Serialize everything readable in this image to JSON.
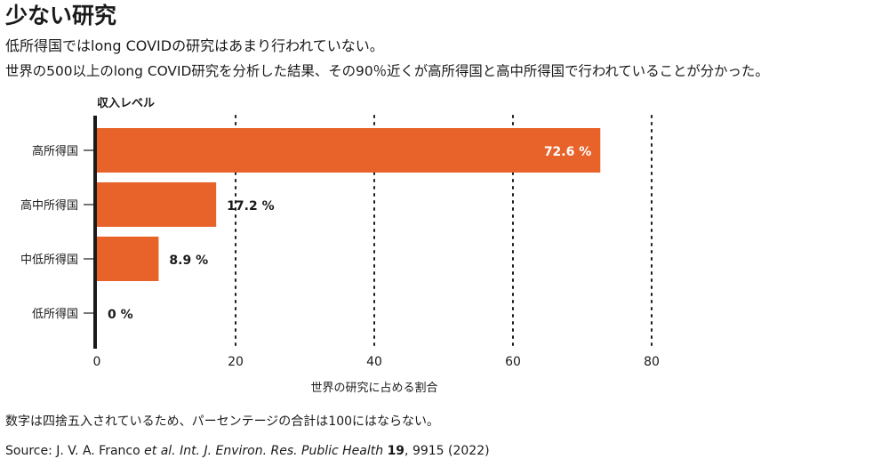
{
  "header": {
    "title": "少ない研究",
    "subtitle1": "低所得国ではlong COVIDの研究はあまり行われていない。",
    "subtitle2": "世界の500以上のlong COVID研究を分析した結果、その90％近くが高所得国と高中所得国で行われていることが分かった。"
  },
  "footer": {
    "note": "数字は四捨五入されているため、パーセンテージの合計は100にはならない。",
    "source_prefix": "Source: J. V. A. Franco ",
    "source_italic": "et al. Int. J. Environ. Res. Public Health",
    "source_bold": "19",
    "source_suffix": ", 9915 (2022)"
  },
  "colors": {
    "bar": "#e8632a",
    "axis": "#1a1a1a",
    "label_inside": "#ffffff"
  },
  "chart_data": {
    "type": "bar",
    "orientation": "horizontal",
    "categories": [
      "高所得国",
      "高中所得国",
      "中低所得国",
      "低所得国"
    ],
    "values": [
      72.6,
      17.2,
      8.9,
      0
    ],
    "value_labels": [
      "72.6 %",
      "17.2 %",
      "8.9 %",
      "0 %"
    ],
    "category_axis_label": "収入レベル",
    "xlabel": "世界の研究に占める割合",
    "xlim": [
      0,
      80
    ],
    "xticks": [
      0,
      20,
      40,
      60,
      80
    ],
    "xtick_labels": [
      "0",
      "20",
      "40",
      "60",
      "80"
    ],
    "grid": "vertical dotted"
  }
}
